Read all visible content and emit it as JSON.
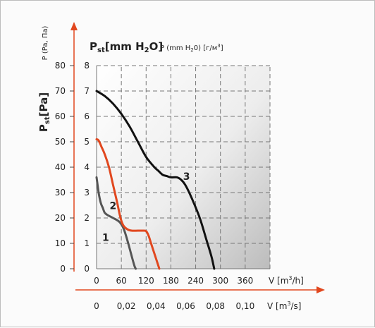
{
  "chart_data": {
    "type": "line",
    "y_title_main": "P",
    "y_title_main_sub": "st",
    "y_title_main_unit": "[Pa]",
    "y_title_rotated": "P (Pa, Па)",
    "y2_title_main": "P",
    "y2_title_main_sub": "st",
    "y2_title_main_unit": "[mm H",
    "y2_title_main_unit_sub": "2",
    "y2_title_main_unit_end": "O]",
    "y2_title_small": "P (mm H",
    "y2_title_small_sub": "2",
    "y2_title_small_mid": "0) [г/м",
    "y2_title_small_sup": "3",
    "y2_title_small_end": "]",
    "x_label_m3h": "V [m",
    "x_label_m3h_sup": "3",
    "x_label_m3h_end": "/h]",
    "x_label_m3s": "V [m",
    "x_label_m3s_sup": "3",
    "x_label_m3s_end": "/s]",
    "x_ticks_m3h": [
      "0",
      "60",
      "120",
      "180",
      "240",
      "300",
      "360"
    ],
    "x_ticks_m3s": [
      "0",
      "0,02",
      "0,04",
      "0,06",
      "0,08",
      "0,10"
    ],
    "y_ticks_pa": [
      "0",
      "10",
      "20",
      "30",
      "40",
      "50",
      "60",
      "70",
      "80"
    ],
    "y_ticks_mm": [
      "0",
      "1",
      "2",
      "3",
      "4",
      "5",
      "6",
      "7",
      "8"
    ],
    "xlim": [
      0,
      420
    ],
    "ylim_pa": [
      0,
      80
    ],
    "grid": true,
    "series": [
      {
        "name": "1",
        "color": "#555555",
        "x": [
          0,
          5,
          10,
          15,
          20,
          28,
          40,
          55,
          65,
          75,
          85,
          92,
          95
        ],
        "y": [
          36,
          30,
          26,
          24,
          22,
          21,
          20,
          18.5,
          16,
          11,
          5,
          1,
          0
        ]
      },
      {
        "name": "2",
        "color": "#e1471e",
        "x": [
          0,
          5,
          12,
          20,
          30,
          40,
          50,
          58,
          65,
          75,
          85,
          100,
          112,
          120,
          126,
          132,
          140,
          148,
          152
        ],
        "y": [
          51,
          50.5,
          48,
          45,
          40,
          33,
          26,
          20,
          17,
          15.5,
          15,
          15,
          15,
          14.8,
          13,
          10,
          6,
          2,
          0
        ]
      },
      {
        "name": "3",
        "color": "#111111",
        "x": [
          0,
          20,
          40,
          60,
          80,
          100,
          120,
          140,
          150,
          160,
          170,
          180,
          195,
          205,
          215,
          230,
          250,
          265,
          278,
          285
        ],
        "y": [
          70,
          68,
          65,
          61,
          56,
          50,
          44,
          40,
          38.5,
          37,
          36.5,
          36,
          36,
          35,
          33,
          28,
          20,
          12,
          5,
          0
        ]
      }
    ]
  }
}
